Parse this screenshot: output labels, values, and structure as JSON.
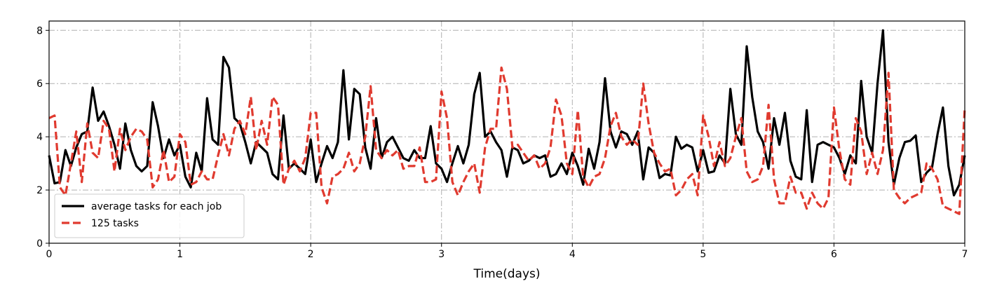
{
  "chart_data": {
    "type": "line",
    "xlabel": "Time(days)",
    "x": [
      0,
      0.042,
      0.083,
      0.125,
      0.167,
      0.208,
      0.25,
      0.292,
      0.333,
      0.375,
      0.417,
      0.458,
      0.5,
      0.542,
      0.583,
      0.625,
      0.667,
      0.708,
      0.75,
      0.792,
      0.833,
      0.875,
      0.917,
      0.958,
      1,
      1.042,
      1.083,
      1.125,
      1.167,
      1.208,
      1.25,
      1.292,
      1.333,
      1.375,
      1.417,
      1.458,
      1.5,
      1.542,
      1.583,
      1.625,
      1.667,
      1.708,
      1.75,
      1.792,
      1.833,
      1.875,
      1.917,
      1.958,
      2,
      2.042,
      2.083,
      2.125,
      2.167,
      2.208,
      2.25,
      2.292,
      2.333,
      2.375,
      2.417,
      2.458,
      2.5,
      2.542,
      2.583,
      2.625,
      2.667,
      2.708,
      2.75,
      2.792,
      2.833,
      2.875,
      2.917,
      2.958,
      3,
      3.042,
      3.083,
      3.125,
      3.167,
      3.208,
      3.25,
      3.292,
      3.333,
      3.375,
      3.417,
      3.458,
      3.5,
      3.542,
      3.583,
      3.625,
      3.667,
      3.708,
      3.75,
      3.792,
      3.833,
      3.875,
      3.917,
      3.958,
      4,
      4.042,
      4.083,
      4.125,
      4.167,
      4.208,
      4.25,
      4.292,
      4.333,
      4.375,
      4.417,
      4.458,
      4.5,
      4.542,
      4.583,
      4.625,
      4.667,
      4.708,
      4.75,
      4.792,
      4.833,
      4.875,
      4.917,
      4.958,
      5,
      5.042,
      5.083,
      5.125,
      5.167,
      5.208,
      5.25,
      5.292,
      5.333,
      5.375,
      5.417,
      5.458,
      5.5,
      5.542,
      5.583,
      5.625,
      5.667,
      5.708,
      5.75,
      5.792,
      5.833,
      5.875,
      5.917,
      5.958,
      6,
      6.042,
      6.083,
      6.125,
      6.167,
      6.208,
      6.25,
      6.292,
      6.333,
      6.375,
      6.417,
      6.458,
      6.5,
      6.542,
      6.583,
      6.625,
      6.667,
      6.708,
      6.75,
      6.792,
      6.833,
      6.875,
      6.917,
      6.958,
      7
    ],
    "series": [
      {
        "name": "average tasks for each job",
        "color": "#000000",
        "dash": false,
        "values": [
          3.3,
          2.25,
          2.3,
          3.5,
          2.9,
          3.6,
          4.1,
          4.2,
          5.85,
          4.6,
          4.95,
          4.4,
          3.7,
          2.8,
          4.5,
          3.5,
          2.9,
          2.7,
          2.9,
          5.3,
          4.4,
          3.2,
          3.9,
          3.3,
          3.7,
          2.5,
          2.1,
          3.4,
          2.7,
          5.45,
          3.9,
          3.7,
          7.0,
          6.6,
          4.7,
          4.5,
          3.8,
          3.0,
          3.8,
          3.6,
          3.4,
          2.6,
          2.4,
          4.8,
          2.8,
          3.0,
          2.8,
          2.6,
          3.9,
          2.3,
          3.0,
          3.65,
          3.2,
          3.8,
          6.5,
          3.9,
          5.8,
          5.6,
          3.6,
          2.8,
          4.7,
          3.2,
          3.8,
          4.0,
          3.6,
          3.2,
          3.1,
          3.5,
          3.2,
          3.2,
          4.4,
          3.0,
          2.8,
          2.3,
          3.0,
          3.65,
          3.0,
          3.7,
          5.6,
          6.4,
          4.0,
          4.2,
          3.8,
          3.5,
          2.5,
          3.6,
          3.5,
          3.0,
          3.1,
          3.3,
          3.2,
          3.3,
          2.5,
          2.6,
          3.0,
          2.6,
          3.4,
          2.9,
          2.2,
          3.55,
          2.8,
          3.8,
          6.2,
          4.2,
          3.6,
          4.2,
          4.1,
          3.7,
          4.2,
          2.4,
          3.6,
          3.4,
          2.45,
          2.6,
          2.55,
          4.0,
          3.55,
          3.7,
          3.6,
          2.7,
          3.5,
          2.65,
          2.7,
          3.3,
          3.0,
          5.8,
          4.1,
          3.7,
          7.4,
          5.5,
          4.2,
          3.8,
          2.8,
          4.7,
          3.7,
          4.9,
          3.1,
          2.5,
          2.4,
          5.0,
          2.3,
          3.7,
          3.8,
          3.7,
          3.6,
          3.2,
          2.6,
          3.3,
          3.0,
          6.1,
          4.0,
          3.4,
          6.0,
          8.0,
          3.8,
          2.2,
          3.2,
          3.8,
          3.85,
          4.05,
          2.3,
          2.65,
          2.85,
          4.1,
          5.1,
          2.9,
          1.8,
          2.2,
          3.3
        ]
      },
      {
        "name": "125 tasks",
        "color": "#e03a2f",
        "dash": true,
        "values": [
          4.7,
          4.8,
          2.1,
          1.8,
          3.0,
          4.2,
          2.3,
          4.5,
          3.4,
          3.2,
          4.6,
          4.3,
          2.7,
          4.3,
          3.5,
          4.0,
          4.3,
          4.2,
          3.9,
          2.1,
          2.4,
          3.5,
          2.3,
          2.5,
          4.1,
          3.8,
          2.2,
          2.3,
          2.7,
          2.4,
          2.4,
          3.3,
          4.1,
          3.3,
          4.3,
          4.6,
          4.1,
          5.5,
          3.5,
          4.6,
          3.7,
          5.5,
          5.2,
          2.2,
          2.8,
          3.1,
          2.7,
          3.2,
          4.9,
          4.9,
          2.1,
          1.5,
          2.5,
          2.6,
          2.8,
          3.4,
          2.7,
          3.0,
          4.0,
          5.9,
          3.5,
          3.2,
          3.5,
          3.3,
          3.5,
          2.8,
          2.9,
          2.9,
          3.6,
          2.3,
          2.3,
          2.4,
          5.7,
          4.7,
          2.3,
          1.8,
          2.3,
          2.7,
          3.0,
          1.9,
          3.6,
          4.3,
          4.3,
          6.6,
          5.8,
          3.6,
          3.7,
          3.4,
          3.1,
          3.3,
          2.8,
          3.0,
          3.6,
          5.4,
          4.8,
          3.0,
          2.6,
          5.0,
          2.5,
          2.1,
          2.5,
          2.6,
          3.2,
          4.4,
          4.9,
          4.0,
          3.7,
          3.9,
          3.7,
          6.0,
          4.5,
          3.4,
          3.0,
          2.7,
          2.8,
          1.8,
          2.0,
          2.4,
          2.6,
          1.8,
          4.8,
          4.0,
          2.9,
          3.8,
          2.9,
          3.2,
          4.0,
          4.7,
          2.7,
          2.3,
          2.4,
          2.9,
          5.2,
          2.4,
          1.5,
          1.5,
          2.5,
          1.9,
          1.9,
          1.3,
          1.9,
          1.5,
          1.3,
          1.7,
          5.1,
          3.5,
          2.4,
          2.2,
          4.7,
          4.2,
          2.6,
          3.4,
          2.6,
          3.5,
          6.4,
          2.0,
          1.7,
          1.5,
          1.7,
          1.8,
          1.9,
          3.0,
          2.8,
          2.4,
          1.4,
          1.3,
          1.2,
          1.1,
          5.1
        ]
      }
    ],
    "xlim": [
      0,
      7
    ],
    "xticks": [
      0,
      1,
      2,
      3,
      4,
      5,
      6,
      7
    ],
    "ylim": [
      0,
      8.35
    ],
    "yticks": [
      0,
      2,
      4,
      6,
      8
    ],
    "grid": true,
    "legend": "lower left"
  }
}
